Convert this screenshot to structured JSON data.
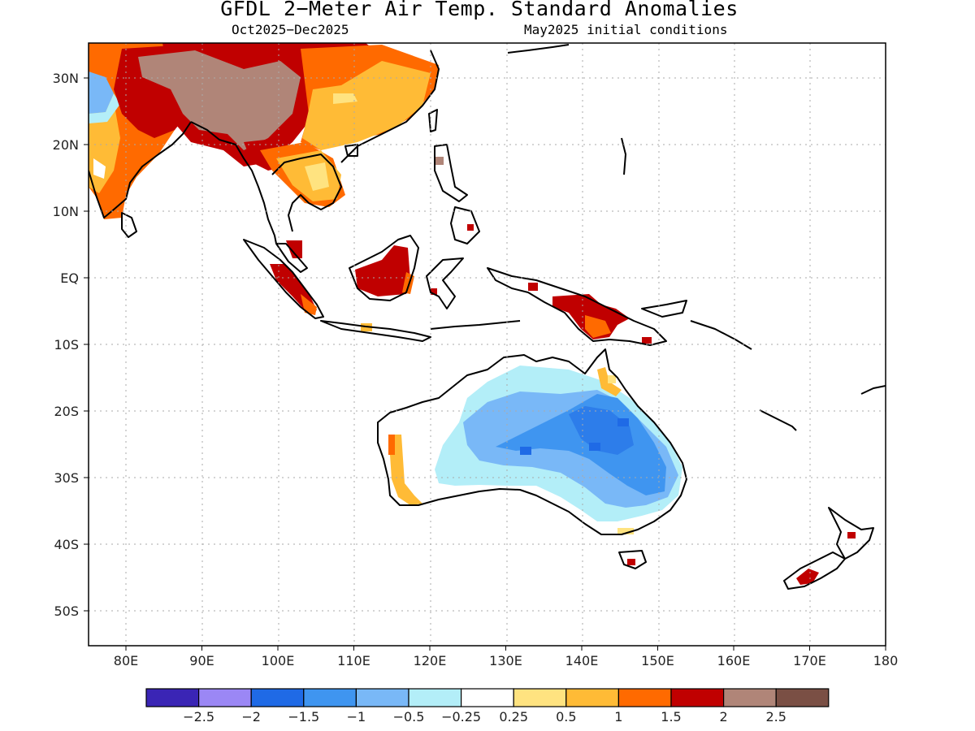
{
  "title": "GFDL 2−Meter Air Temp. Standard Anomalies",
  "subtitle_left": "Oct2025−Dec2025",
  "subtitle_right": "May2025 initial conditions",
  "lat_labels": [
    "30N",
    "20N",
    "10N",
    "EQ",
    "10S",
    "20S",
    "30S",
    "40S",
    "50S"
  ],
  "lon_labels": [
    "80E",
    "90E",
    "100E",
    "110E",
    "120E",
    "130E",
    "140E",
    "150E",
    "160E",
    "170E",
    "180"
  ],
  "colorbar": {
    "colors": [
      "#3a25b5",
      "#9b87f5",
      "#1f6ae6",
      "#3f95f0",
      "#79b8f7",
      "#b3eef8",
      "#ffffff",
      "#ffe380",
      "#ffbb36",
      "#ff6a00",
      "#c00000",
      "#b08578",
      "#7a4f44"
    ],
    "labels": [
      "−2.5",
      "−2",
      "−1.5",
      "−1",
      "−0.5",
      "−0.25",
      "0.25",
      "0.5",
      "1",
      "1.5",
      "2",
      "2.5"
    ]
  }
}
